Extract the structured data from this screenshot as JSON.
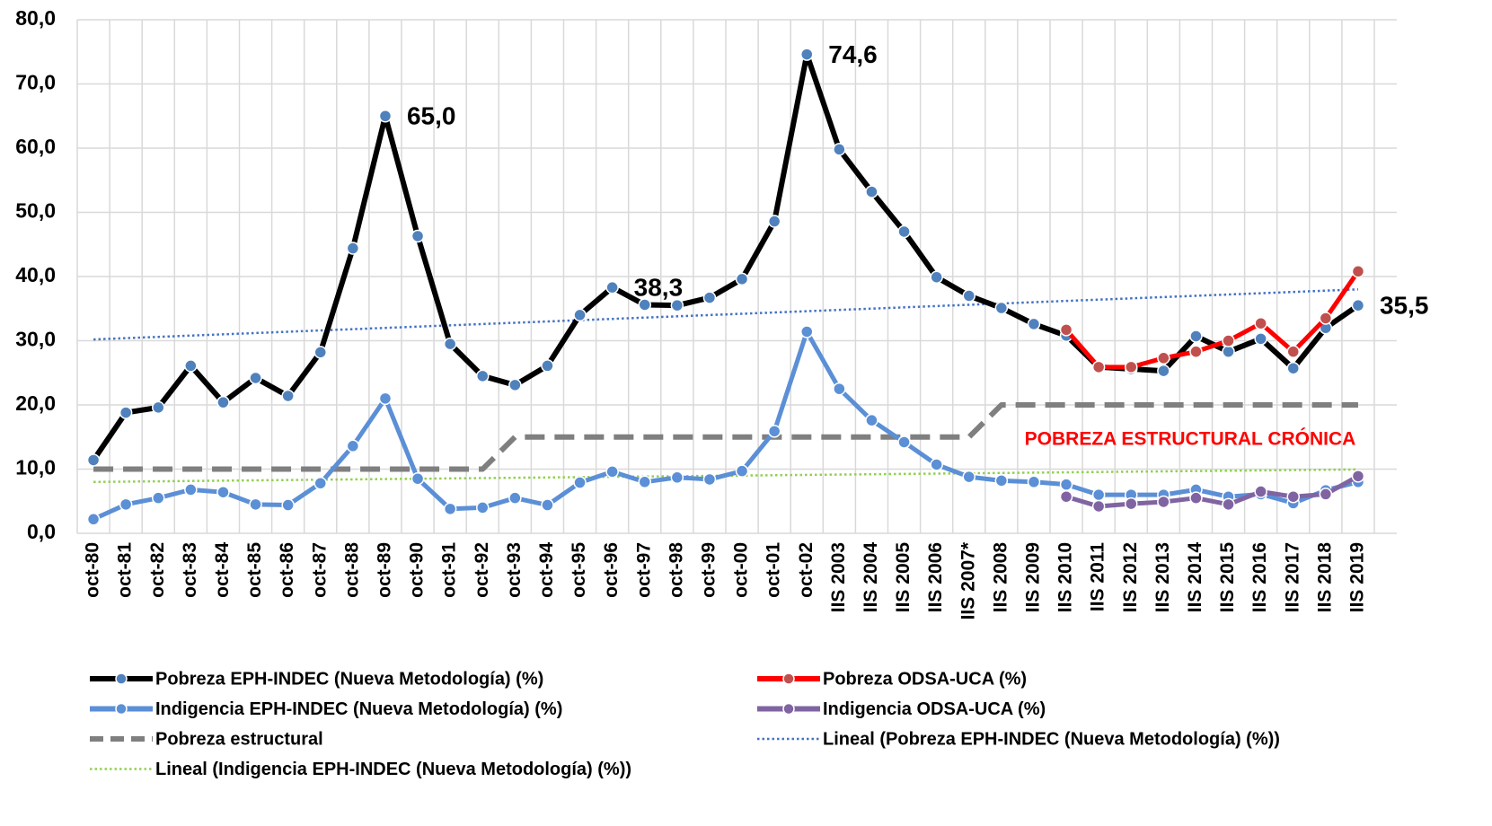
{
  "chart_data": {
    "type": "line",
    "categories": [
      "oct-80",
      "oct-81",
      "oct-82",
      "oct-83",
      "oct-84",
      "oct-85",
      "oct-86",
      "oct-87",
      "oct-88",
      "oct-89",
      "oct-90",
      "oct-91",
      "oct-92",
      "oct-93",
      "oct-94",
      "oct-95",
      "oct-96",
      "oct-97",
      "oct-98",
      "oct-99",
      "oct-00",
      "oct-01",
      "oct-02",
      "IIS 2003",
      "IIS 2004",
      "IIS 2005",
      "IIS 2006",
      "IIS 2007*",
      "IIS 2008",
      "IIS 2009",
      "IIS 2010",
      "IIS 2011",
      "IIS 2012",
      "IIS 2013",
      "IIS 2014",
      "IIS 2015",
      "IIS 2016",
      "IIS 2017",
      "IIS 2018",
      "IIS 2019"
    ],
    "ylim": [
      0,
      80
    ],
    "yticks": [
      {
        "value": 0,
        "label": "0,0"
      },
      {
        "value": 10,
        "label": "10,0"
      },
      {
        "value": 20,
        "label": "20,0"
      },
      {
        "value": 30,
        "label": "30,0"
      },
      {
        "value": 40,
        "label": "40,0"
      },
      {
        "value": 50,
        "label": "50,0"
      },
      {
        "value": 60,
        "label": "60,0"
      },
      {
        "value": 70,
        "label": "70,0"
      },
      {
        "value": 80,
        "label": "80,0"
      }
    ],
    "grid": true,
    "annotation": "POBREZA ESTRUCTURAL CRÓNICA",
    "series": [
      {
        "name": "Pobreza EPH-INDEC (Nueva Metodología) (%)",
        "color": "#000000",
        "marker_color": "#4f81bd",
        "style": "solid",
        "values": [
          11.4,
          18.8,
          19.6,
          26.1,
          20.4,
          24.2,
          21.4,
          28.2,
          44.4,
          65.0,
          46.3,
          29.5,
          24.5,
          23.1,
          26.1,
          34.0,
          38.3,
          35.6,
          35.5,
          36.7,
          39.6,
          48.6,
          74.6,
          59.8,
          53.2,
          47.0,
          39.9,
          37.0,
          35.1,
          32.6,
          30.8,
          25.9,
          25.6,
          25.3,
          30.7,
          28.3,
          30.3,
          25.7,
          32.0,
          35.5
        ],
        "value_labels": [
          null,
          null,
          null,
          null,
          null,
          null,
          null,
          null,
          null,
          "65,0",
          null,
          null,
          null,
          null,
          null,
          null,
          "38,3",
          null,
          null,
          null,
          null,
          null,
          "74,6",
          null,
          null,
          null,
          null,
          null,
          null,
          null,
          null,
          null,
          null,
          null,
          null,
          null,
          null,
          null,
          null,
          "35,5"
        ]
      },
      {
        "name": "Pobreza ODSA-UCA (%)",
        "color": "#ff0000",
        "marker_color": "#c0504d",
        "style": "solid",
        "values": [
          null,
          null,
          null,
          null,
          null,
          null,
          null,
          null,
          null,
          null,
          null,
          null,
          null,
          null,
          null,
          null,
          null,
          null,
          null,
          null,
          null,
          null,
          null,
          null,
          null,
          null,
          null,
          null,
          null,
          null,
          31.7,
          25.9,
          25.9,
          27.3,
          28.3,
          30.0,
          32.7,
          28.3,
          33.5,
          40.8
        ]
      },
      {
        "name": "Indigencia EPH-INDEC (Nueva Metodología) (%)",
        "color": "#5b8fd6",
        "marker_color": "#5b8fd6",
        "style": "solid",
        "values": [
          2.2,
          4.5,
          5.5,
          6.8,
          6.4,
          4.5,
          4.4,
          7.8,
          13.6,
          21.0,
          8.5,
          3.8,
          4.0,
          5.5,
          4.4,
          7.9,
          9.6,
          8.0,
          8.7,
          8.4,
          9.7,
          15.9,
          31.4,
          22.5,
          17.6,
          14.2,
          10.7,
          8.8,
          8.2,
          8.0,
          7.6,
          6.0,
          6.0,
          6.0,
          6.8,
          5.7,
          6.1,
          4.7,
          6.7,
          8.0
        ]
      },
      {
        "name": "Indigencia ODSA-UCA (%)",
        "color": "#8064a2",
        "marker_color": "#8064a2",
        "style": "solid",
        "values": [
          null,
          null,
          null,
          null,
          null,
          null,
          null,
          null,
          null,
          null,
          null,
          null,
          null,
          null,
          null,
          null,
          null,
          null,
          null,
          null,
          null,
          null,
          null,
          null,
          null,
          null,
          null,
          null,
          null,
          null,
          5.7,
          4.2,
          4.6,
          4.9,
          5.5,
          4.5,
          6.5,
          5.7,
          6.1,
          8.9
        ]
      },
      {
        "name": "Pobreza estructural",
        "color": "#7f7f7f",
        "style": "dashed",
        "values": [
          10,
          10,
          10,
          10,
          10,
          10,
          10,
          10,
          10,
          10,
          10,
          10,
          10,
          15,
          15,
          15,
          15,
          15,
          15,
          15,
          15,
          15,
          15,
          15,
          15,
          15,
          15,
          15,
          20,
          20,
          20,
          20,
          20,
          20,
          20,
          20,
          20,
          20,
          20,
          20
        ]
      },
      {
        "name": "Lineal (Pobreza EPH-INDEC (Nueva Metodología) (%))",
        "color": "#4472c4",
        "style": "dotted",
        "values": [
          30.2,
          30.4,
          30.6,
          30.8,
          31.0,
          31.2,
          31.4,
          31.6,
          31.8,
          32.0,
          32.2,
          32.4,
          32.6,
          32.8,
          33.0,
          33.2,
          33.4,
          33.6,
          33.8,
          34.0,
          34.2,
          34.4,
          34.6,
          34.8,
          35.0,
          35.2,
          35.4,
          35.6,
          35.8,
          36.0,
          36.2,
          36.4,
          36.6,
          36.8,
          37.0,
          37.2,
          37.4,
          37.6,
          37.8,
          38.0
        ]
      },
      {
        "name": "Lineal (Indigencia EPH-INDEC (Nueva Metodología) (%))",
        "color": "#92d050",
        "style": "dotted",
        "values": [
          8.0,
          8.05,
          8.1,
          8.15,
          8.2,
          8.25,
          8.3,
          8.35,
          8.4,
          8.45,
          8.5,
          8.55,
          8.6,
          8.65,
          8.7,
          8.75,
          8.8,
          8.85,
          8.9,
          8.95,
          9.0,
          9.05,
          9.1,
          9.15,
          9.2,
          9.25,
          9.3,
          9.35,
          9.4,
          9.45,
          9.5,
          9.55,
          9.6,
          9.65,
          9.7,
          9.75,
          9.8,
          9.85,
          9.9,
          9.95
        ]
      }
    ]
  }
}
